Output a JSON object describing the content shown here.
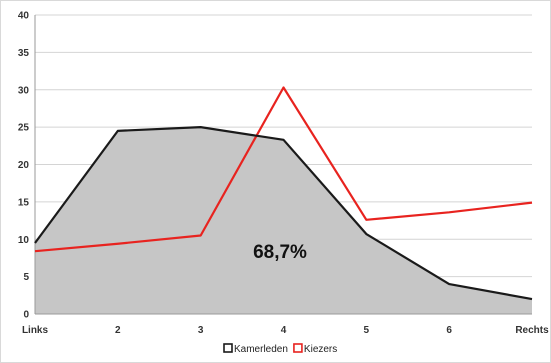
{
  "chart_data": {
    "type": "line",
    "categories": [
      "Links",
      "2",
      "3",
      "4",
      "5",
      "6",
      "Rechts"
    ],
    "series": [
      {
        "name": "Kamerleden",
        "color": "#1a1a1a",
        "fill": "#c6c6c6",
        "values": [
          9.5,
          24.5,
          25.0,
          23.3,
          10.7,
          4.0,
          2.0
        ]
      },
      {
        "name": "Kiezers",
        "color": "#e8231f",
        "values": [
          8.4,
          9.4,
          10.5,
          30.3,
          12.6,
          13.6,
          14.9
        ]
      }
    ],
    "ylim": [
      0,
      40
    ],
    "yticks": [
      "0",
      "5",
      "10",
      "15",
      "20",
      "25",
      "30",
      "35",
      "40"
    ],
    "grid": true,
    "legend": "bottom",
    "annotation": "68,7%"
  }
}
